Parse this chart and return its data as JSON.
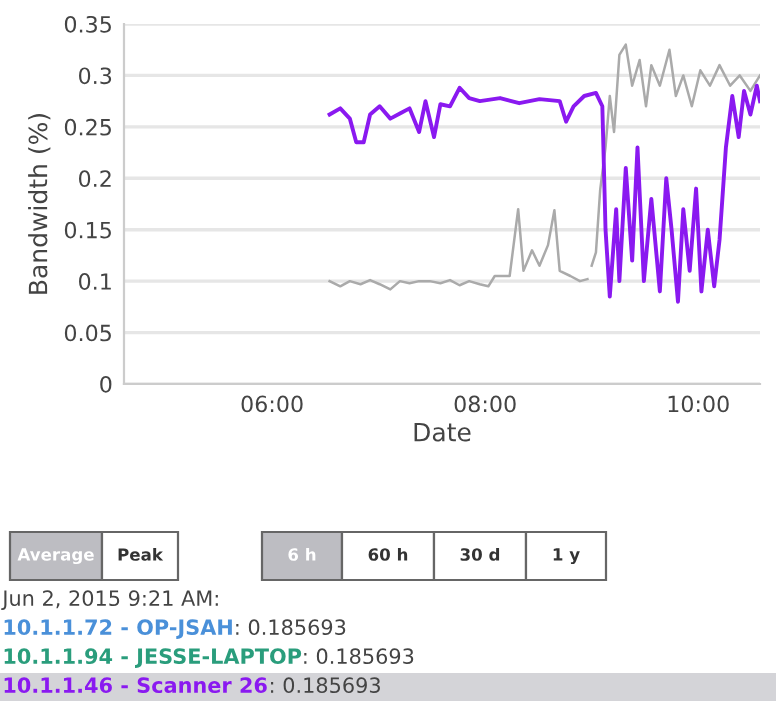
{
  "chart_data": {
    "type": "line",
    "xlabel": "Date",
    "ylabel": "Bandwidth (%)",
    "xlim": [
      4.61,
      10.58
    ],
    "xticks": [
      {
        "value": 6,
        "label": "06:00"
      },
      {
        "value": 8,
        "label": "08:00"
      },
      {
        "value": 10,
        "label": "10:00"
      }
    ],
    "ylim": [
      0,
      0.35
    ],
    "yticks": [
      0,
      0.05,
      0.1,
      0.15,
      0.2,
      0.25,
      0.3,
      0.35
    ],
    "grid": "y",
    "legend": false,
    "marker": "none",
    "line_style": "solid",
    "series": [
      {
        "color": "#aaaaaa",
        "x": [
          6.54,
          6.64,
          6.73,
          6.83,
          6.92,
          7.01,
          7.11,
          7.2,
          7.29,
          7.38,
          7.48,
          7.58,
          7.67,
          7.76,
          7.85,
          7.95,
          8.03,
          8.09,
          8.23,
          8.31,
          8.36,
          8.44,
          8.51,
          8.59,
          8.65,
          8.7,
          8.8,
          8.89,
          8.96,
          8.98,
          9.0,
          9.04,
          9.08,
          9.13,
          9.17,
          9.21,
          9.26,
          9.32,
          9.38,
          9.45,
          9.51,
          9.56,
          9.64,
          9.73,
          9.79,
          9.86,
          9.94,
          10.02,
          10.11,
          10.2,
          10.3,
          10.39,
          10.49,
          10.58
        ],
        "values": [
          0.1,
          0.095,
          0.1,
          0.097,
          0.101,
          0.097,
          0.092,
          0.1,
          0.098,
          0.1,
          0.1,
          0.098,
          0.101,
          0.096,
          0.1,
          0.097,
          0.095,
          0.105,
          0.105,
          0.17,
          0.11,
          0.13,
          0.115,
          0.135,
          0.169,
          0.11,
          0.105,
          0.1,
          0.102,
          null,
          0.115,
          0.128,
          0.189,
          0.23,
          0.28,
          0.245,
          0.32,
          0.33,
          0.29,
          0.315,
          0.27,
          0.31,
          0.29,
          0.325,
          0.28,
          0.3,
          0.27,
          0.305,
          0.29,
          0.31,
          0.29,
          0.3,
          0.285,
          0.3
        ]
      },
      {
        "color": "#8a19f0",
        "x": [
          6.54,
          6.64,
          6.73,
          6.79,
          6.86,
          6.92,
          7.01,
          7.11,
          7.2,
          7.29,
          7.38,
          7.44,
          7.52,
          7.58,
          7.67,
          7.76,
          7.85,
          7.95,
          8.14,
          8.32,
          8.51,
          8.7,
          8.76,
          8.83,
          8.93,
          9.04,
          9.1,
          9.13,
          9.17,
          9.23,
          9.26,
          9.32,
          9.38,
          9.43,
          9.49,
          9.56,
          9.64,
          9.7,
          9.75,
          9.81,
          9.86,
          9.92,
          9.98,
          10.03,
          10.09,
          10.15,
          10.2,
          10.26,
          10.32,
          10.38,
          10.43,
          10.49,
          10.55,
          10.58
        ],
        "values": [
          0.262,
          0.268,
          0.258,
          0.235,
          0.235,
          0.262,
          0.27,
          0.258,
          0.263,
          0.268,
          0.245,
          0.275,
          0.24,
          0.272,
          0.27,
          0.288,
          0.278,
          0.275,
          0.278,
          0.273,
          0.277,
          0.275,
          0.255,
          0.27,
          0.28,
          0.283,
          0.27,
          0.15,
          0.085,
          0.17,
          0.1,
          0.21,
          0.12,
          0.23,
          0.1,
          0.18,
          0.09,
          0.2,
          0.15,
          0.08,
          0.17,
          0.11,
          0.19,
          0.09,
          0.15,
          0.095,
          0.14,
          0.23,
          0.28,
          0.24,
          0.285,
          0.262,
          0.29,
          0.275
        ]
      }
    ],
    "annotations": [
      "Average",
      "Peak",
      "6 h",
      "60 h",
      "30 d",
      "1 y",
      "Jun 2, 2015 9:21 AM:",
      "10.1.1.72 - OP-JSAH: 0.185693",
      "10.1.1.94 - JESSE-LAPTOP: 0.185693",
      "10.1.1.46 - Scanner 26: 0.185693"
    ]
  }
}
